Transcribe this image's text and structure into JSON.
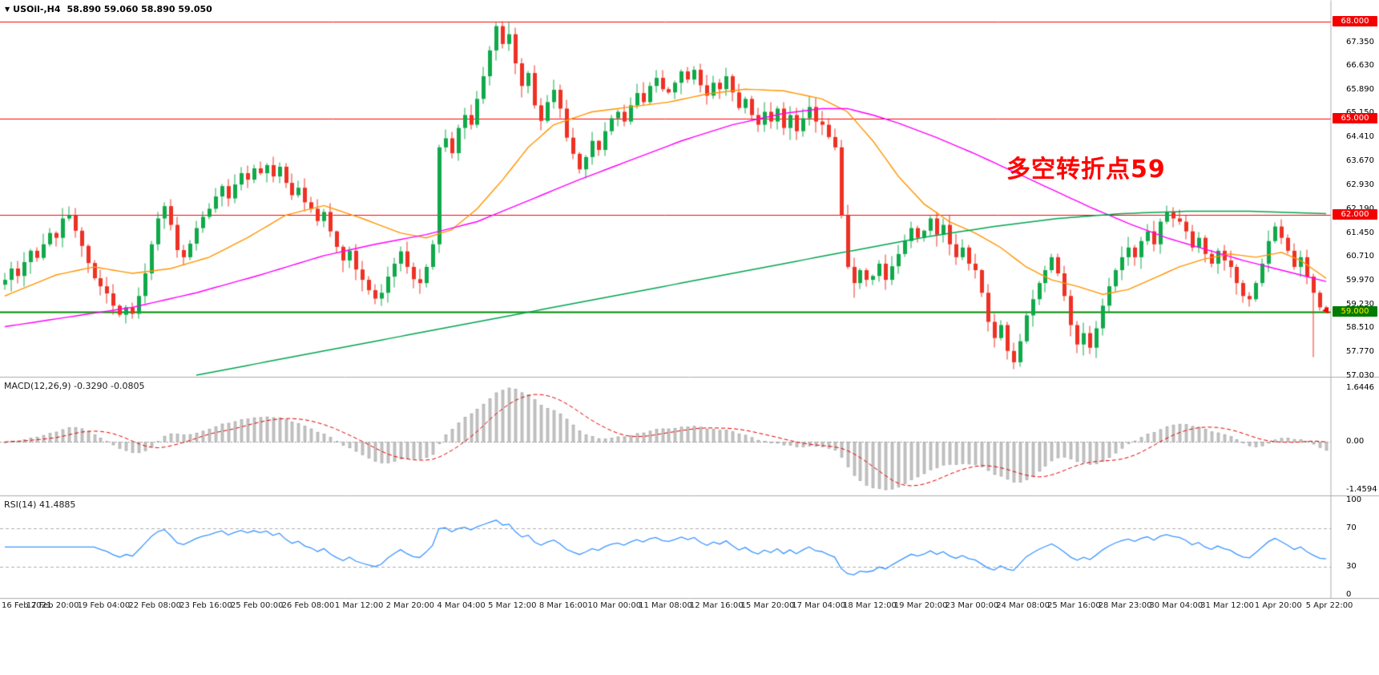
{
  "header": {
    "symbol": "USOil-,H4",
    "ohlc": "58.890 59.060 58.890 59.050",
    "open": "58.890",
    "high": "59.060",
    "low": "58.890",
    "close": "59.050"
  },
  "time_axis": {
    "labels": [
      "16 Feb 2021",
      "17 Feb 20:00",
      "19 Feb 04:00",
      "22 Feb 08:00",
      "23 Feb 16:00",
      "25 Feb 00:00",
      "26 Feb 08:00",
      "1 Mar 12:00",
      "2 Mar 20:00",
      "4 Mar 04:00",
      "5 Mar 12:00",
      "8 Mar 16:00",
      "10 Mar 00:00",
      "11 Mar 08:00",
      "12 Mar 16:00",
      "15 Mar 20:00",
      "17 Mar 04:00",
      "18 Mar 12:00",
      "19 Mar 20:00",
      "23 Mar 00:00",
      "24 Mar 08:00",
      "25 Mar 16:00",
      "28 Mar 23:00",
      "30 Mar 04:00",
      "31 Mar 12:00",
      "1 Apr 20:00",
      "5 Apr 22:00"
    ]
  },
  "colors": {
    "candle_up": "#10A94A",
    "candle_down": "#EE3124",
    "ma_fast": "#FF9500",
    "ma_medium": "#FF00FF",
    "ma_slow": "#00A550",
    "resistance_line": "#FF0000",
    "support_line": "#008A00",
    "macd_histogram": "#c6c6c6",
    "macd_signal": "#E60000",
    "rsi_line": "#3C96FF",
    "separator": "#ababab",
    "annotation": "#FF0000"
  },
  "chart_data": [
    {
      "type": "candlestick",
      "title": "USOil- H4",
      "ylim": [
        57.0,
        68.66
      ],
      "y_ticks": [
        {
          "v": 67.35,
          "t": "67.350"
        },
        {
          "v": 66.63,
          "t": "66.630"
        },
        {
          "v": 65.89,
          "t": "65.890"
        },
        {
          "v": 65.15,
          "t": "65.150"
        },
        {
          "v": 64.41,
          "t": "64.410"
        },
        {
          "v": 63.67,
          "t": "63.670"
        },
        {
          "v": 62.93,
          "t": "62.930"
        },
        {
          "v": 62.19,
          "t": "62.190"
        },
        {
          "v": 61.45,
          "t": "61.450"
        },
        {
          "v": 60.71,
          "t": "60.710"
        },
        {
          "v": 59.97,
          "t": "59.970"
        },
        {
          "v": 59.23,
          "t": "59.230"
        },
        {
          "v": 58.51,
          "t": "58.510"
        },
        {
          "v": 57.77,
          "t": "57.770"
        },
        {
          "v": 57.03,
          "t": "57.030"
        }
      ],
      "hlines": [
        {
          "value": 68.0,
          "color": "#FF0000",
          "width": 1
        },
        {
          "value": 65.0,
          "color": "#FF0000",
          "width": 1
        },
        {
          "value": 62.0,
          "color": "#FF0000",
          "width": 1
        },
        {
          "value": 59.0,
          "color": "#008A00",
          "width": 2
        }
      ],
      "badges": [
        {
          "value": 68.0,
          "t": "68.000",
          "bg": "#F40000",
          "fg": "#FFFFFF"
        },
        {
          "value": 65.0,
          "t": "65.000",
          "bg": "#F40000",
          "fg": "#FFFFFF"
        },
        {
          "value": 62.0,
          "t": "62.000",
          "bg": "#F40000",
          "fg": "#FFFFFF"
        },
        {
          "value": 59.0,
          "t": "59.000",
          "bg": "#007C00",
          "fg": "#FFF200"
        }
      ],
      "current_price": 59.05,
      "annotation": {
        "text": "多空转折点59",
        "color": "#FF0000"
      },
      "candles": {
        "first_open": 59.85,
        "up_color": "#10A94A",
        "down_color": "#EE3124",
        "closes": [
          60.0,
          60.35,
          60.12,
          60.55,
          60.9,
          60.68,
          61.1,
          61.45,
          61.3,
          61.9,
          62.0,
          61.52,
          61.05,
          60.52,
          60.05,
          59.8,
          59.58,
          59.2,
          58.92,
          59.15,
          58.95,
          59.5,
          60.2,
          61.1,
          61.9,
          62.28,
          61.7,
          60.92,
          60.7,
          61.12,
          61.6,
          61.95,
          62.2,
          62.58,
          62.9,
          62.52,
          62.95,
          63.3,
          63.1,
          63.45,
          63.3,
          63.55,
          63.2,
          63.5,
          63.0,
          62.62,
          62.85,
          62.4,
          62.2,
          61.82,
          62.1,
          61.5,
          61.02,
          60.6,
          60.9,
          60.32,
          60.0,
          59.68,
          59.42,
          59.6,
          60.1,
          60.5,
          60.88,
          60.4,
          60.02,
          59.9,
          60.4,
          61.1,
          64.1,
          64.38,
          63.92,
          64.7,
          65.1,
          64.8,
          65.6,
          66.3,
          67.1,
          67.85,
          67.3,
          67.6,
          66.7,
          66.0,
          66.4,
          65.4,
          64.92,
          65.5,
          65.88,
          65.3,
          64.4,
          63.9,
          63.42,
          63.8,
          64.3,
          64.02,
          64.6,
          65.0,
          65.2,
          64.9,
          65.4,
          65.78,
          65.5,
          66.0,
          66.25,
          65.9,
          65.8,
          66.1,
          66.45,
          66.2,
          66.5,
          66.02,
          65.7,
          66.1,
          65.9,
          66.3,
          65.8,
          65.32,
          65.6,
          65.1,
          64.8,
          65.2,
          64.9,
          65.3,
          64.7,
          65.1,
          64.6,
          65.0,
          65.35,
          64.9,
          64.8,
          64.42,
          64.1,
          62.0,
          60.4,
          59.9,
          60.3,
          60.0,
          60.12,
          60.5,
          60.0,
          60.42,
          60.8,
          61.2,
          61.6,
          61.3,
          61.52,
          61.9,
          61.4,
          61.7,
          61.1,
          60.7,
          61.0,
          60.5,
          60.3,
          59.6,
          58.7,
          58.2,
          58.6,
          57.8,
          57.45,
          58.1,
          58.9,
          59.4,
          59.9,
          60.3,
          60.7,
          60.2,
          59.5,
          58.6,
          58.0,
          58.35,
          57.9,
          58.5,
          59.2,
          59.8,
          60.3,
          60.7,
          61.0,
          60.7,
          61.2,
          61.5,
          61.1,
          61.8,
          62.1,
          61.9,
          61.8,
          61.5,
          61.0,
          61.3,
          60.8,
          60.5,
          60.9,
          60.6,
          60.4,
          59.9,
          59.5,
          59.4,
          59.9,
          60.5,
          61.2,
          61.65,
          61.3,
          60.9,
          60.4,
          60.7,
          60.1,
          59.6,
          59.15,
          59.05
        ],
        "wick_overrides": {
          "18": {
            "low": 58.85
          },
          "41": {
            "high": 63.62
          },
          "77": {
            "high": 68.0
          },
          "79": {
            "high": 67.98
          },
          "131": {
            "low": 61.9
          },
          "133": {
            "low": 59.45
          },
          "145": {
            "high": 61.98
          },
          "158": {
            "low": 57.25
          },
          "164": {
            "high": 60.82
          },
          "168": {
            "low": 57.75
          },
          "170": {
            "low": 57.72
          },
          "182": {
            "high": 62.3
          },
          "199": {
            "high": 61.78
          },
          "205": {
            "low": 57.62
          }
        }
      },
      "moving_averages": [
        {
          "name": "ma-fast-orange",
          "color": "#FF9500",
          "width": 1.4,
          "points": [
            [
              0,
              59.5
            ],
            [
              8,
              60.15
            ],
            [
              14,
              60.4
            ],
            [
              20,
              60.2
            ],
            [
              26,
              60.35
            ],
            [
              32,
              60.7
            ],
            [
              38,
              61.3
            ],
            [
              44,
              62.0
            ],
            [
              50,
              62.3
            ],
            [
              56,
              61.9
            ],
            [
              62,
              61.45
            ],
            [
              66,
              61.3
            ],
            [
              70,
              61.55
            ],
            [
              74,
              62.2
            ],
            [
              78,
              63.1
            ],
            [
              82,
              64.1
            ],
            [
              86,
              64.8
            ],
            [
              92,
              65.2
            ],
            [
              98,
              65.35
            ],
            [
              104,
              65.5
            ],
            [
              110,
              65.75
            ],
            [
              116,
              65.9
            ],
            [
              122,
              65.85
            ],
            [
              128,
              65.6
            ],
            [
              132,
              65.2
            ],
            [
              136,
              64.3
            ],
            [
              140,
              63.2
            ],
            [
              144,
              62.35
            ],
            [
              148,
              61.8
            ],
            [
              152,
              61.45
            ],
            [
              156,
              61.0
            ],
            [
              160,
              60.4
            ],
            [
              164,
              60.0
            ],
            [
              168,
              59.8
            ],
            [
              172,
              59.55
            ],
            [
              176,
              59.7
            ],
            [
              180,
              60.05
            ],
            [
              184,
              60.4
            ],
            [
              188,
              60.65
            ],
            [
              192,
              60.8
            ],
            [
              196,
              60.7
            ],
            [
              200,
              60.85
            ],
            [
              203,
              60.6
            ],
            [
              207,
              60.05
            ]
          ]
        },
        {
          "name": "ma-medium-magenta",
          "color": "#FF00FF",
          "width": 1.4,
          "points": [
            [
              0,
              58.55
            ],
            [
              10,
              58.85
            ],
            [
              20,
              59.15
            ],
            [
              30,
              59.6
            ],
            [
              40,
              60.15
            ],
            [
              50,
              60.75
            ],
            [
              58,
              61.1
            ],
            [
              66,
              61.4
            ],
            [
              74,
              61.8
            ],
            [
              82,
              62.45
            ],
            [
              90,
              63.1
            ],
            [
              98,
              63.7
            ],
            [
              106,
              64.3
            ],
            [
              114,
              64.8
            ],
            [
              122,
              65.15
            ],
            [
              128,
              65.3
            ],
            [
              132,
              65.3
            ],
            [
              136,
              65.1
            ],
            [
              140,
              64.85
            ],
            [
              146,
              64.4
            ],
            [
              152,
              63.9
            ],
            [
              158,
              63.35
            ],
            [
              164,
              62.8
            ],
            [
              170,
              62.25
            ],
            [
              176,
              61.75
            ],
            [
              182,
              61.3
            ],
            [
              188,
              60.95
            ],
            [
              194,
              60.6
            ],
            [
              200,
              60.3
            ],
            [
              204,
              60.1
            ],
            [
              207,
              59.95
            ]
          ]
        },
        {
          "name": "ma-slow-green",
          "color": "#00A550",
          "width": 1.5,
          "points": [
            [
              30,
              57.05
            ],
            [
              50,
              57.8
            ],
            [
              70,
              58.55
            ],
            [
              90,
              59.3
            ],
            [
              110,
              60.05
            ],
            [
              130,
              60.8
            ],
            [
              145,
              61.35
            ],
            [
              155,
              61.65
            ],
            [
              165,
              61.9
            ],
            [
              175,
              62.05
            ],
            [
              185,
              62.12
            ],
            [
              195,
              62.12
            ],
            [
              207,
              62.05
            ]
          ]
        }
      ]
    },
    {
      "type": "macd",
      "label": "MACD(12,26,9) -0.3290 -0.0805",
      "params": [
        12,
        26,
        9
      ],
      "macd_value": "-0.3290",
      "signal_value": "-0.0805",
      "ylim": [
        -1.4594,
        1.6446
      ],
      "y_ticks": [
        {
          "v": 1.6446,
          "t": "1.6446"
        },
        {
          "v": 0,
          "t": "0.00"
        },
        {
          "v": -1.4594,
          "t": "-1.4594"
        }
      ],
      "histogram_color": "#c6c6c6",
      "signal_color": "#E60000"
    },
    {
      "type": "rsi",
      "label": "RSI(14) 41.4885",
      "period": 14,
      "value": "41.4885",
      "ylim": [
        0,
        100
      ],
      "levels": [
        70,
        30
      ],
      "y_ticks": [
        {
          "v": 100,
          "t": "100"
        },
        {
          "v": 70,
          "t": "70"
        },
        {
          "v": 30,
          "t": "30"
        },
        {
          "v": 0,
          "t": "0"
        }
      ],
      "line_color": "#3C96FF"
    }
  ]
}
